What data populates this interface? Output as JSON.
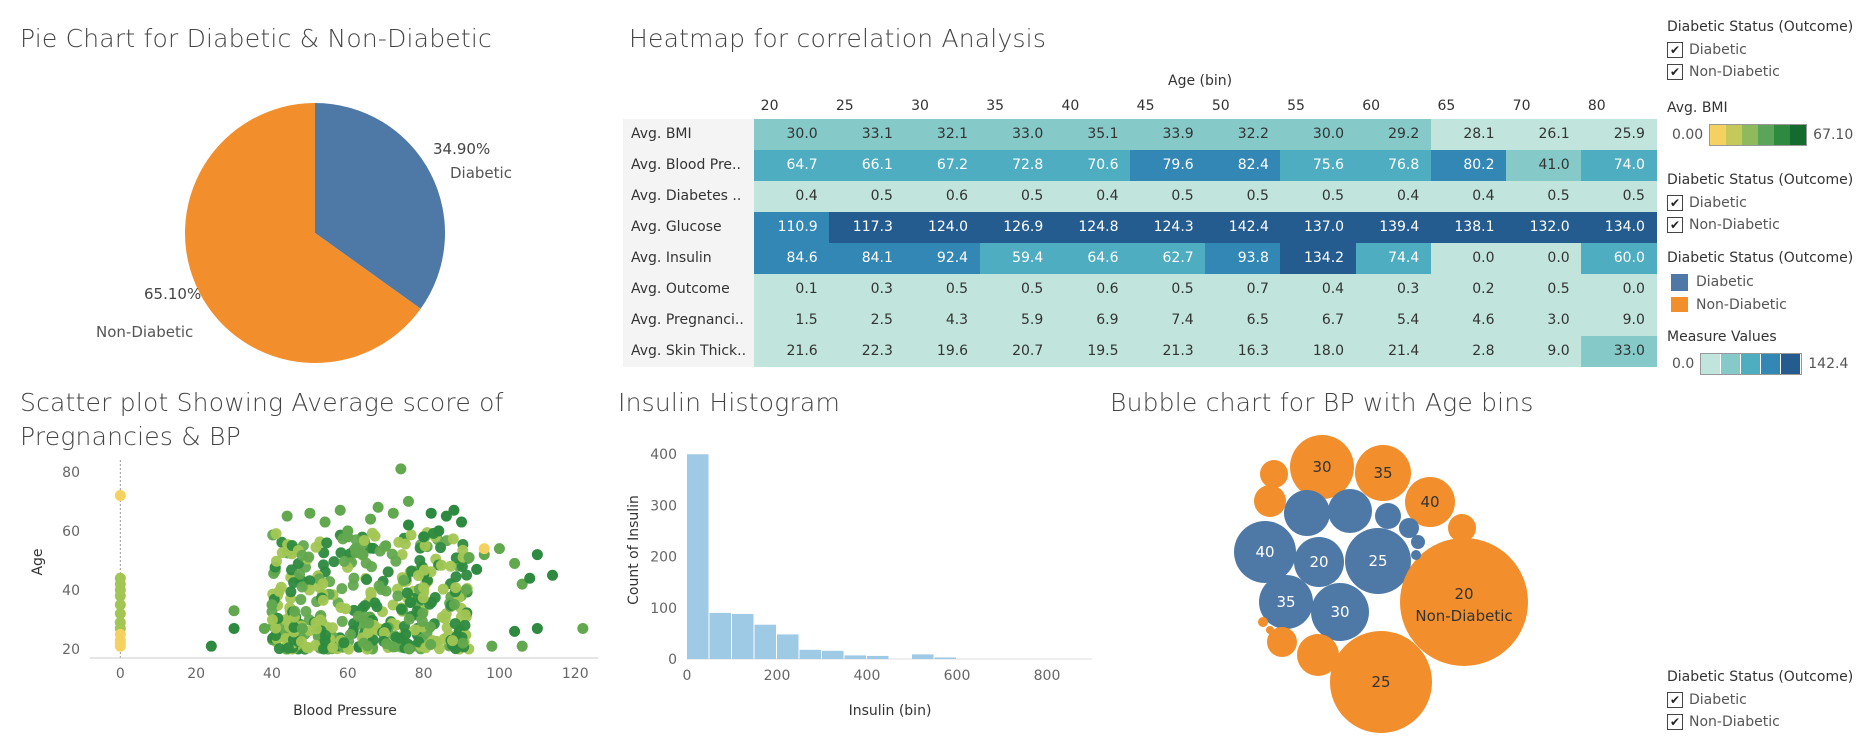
{
  "pie": {
    "title": "Pie Chart for Diabetic & Non-Diabetic",
    "slices": [
      {
        "name": "Diabetic",
        "pct_label": "34.90%",
        "value": 34.9,
        "color": "#4e79a7"
      },
      {
        "name": "Non-Diabetic",
        "pct_label": "65.10%",
        "value": 65.1,
        "color": "#f28e2b"
      }
    ]
  },
  "heatmap": {
    "title": "Heatmap for correlation Analysis",
    "column_header": "Age (bin)",
    "columns": [
      "20",
      "25",
      "30",
      "35",
      "40",
      "45",
      "50",
      "55",
      "60",
      "65",
      "70",
      "80"
    ],
    "rows": [
      "Avg. BMI",
      "Avg. Blood Pre..",
      "Avg. Diabetes ..",
      "Avg. Glucose",
      "Avg. Insulin",
      "Avg. Outcome",
      "Avg. Pregnanci..",
      "Avg. Skin Thick.."
    ],
    "values": [
      [
        "30.0",
        "33.1",
        "32.1",
        "33.0",
        "35.1",
        "33.9",
        "32.2",
        "30.0",
        "29.2",
        "28.1",
        "26.1",
        "25.9"
      ],
      [
        "64.7",
        "66.1",
        "67.2",
        "72.8",
        "70.6",
        "79.6",
        "82.4",
        "75.6",
        "76.8",
        "80.2",
        "41.0",
        "74.0"
      ],
      [
        "0.4",
        "0.5",
        "0.6",
        "0.5",
        "0.4",
        "0.5",
        "0.5",
        "0.5",
        "0.4",
        "0.4",
        "0.5",
        "0.5"
      ],
      [
        "110.9",
        "117.3",
        "124.0",
        "126.9",
        "124.8",
        "124.3",
        "142.4",
        "137.0",
        "139.4",
        "138.1",
        "132.0",
        "134.0"
      ],
      [
        "84.6",
        "84.1",
        "92.4",
        "59.4",
        "64.6",
        "62.7",
        "93.8",
        "134.2",
        "74.4",
        "0.0",
        "0.0",
        "60.0"
      ],
      [
        "0.1",
        "0.3",
        "0.5",
        "0.5",
        "0.6",
        "0.5",
        "0.7",
        "0.4",
        "0.3",
        "0.2",
        "0.5",
        "0.0"
      ],
      [
        "1.5",
        "2.5",
        "4.3",
        "5.9",
        "6.9",
        "7.4",
        "6.5",
        "6.7",
        "5.4",
        "4.6",
        "3.0",
        "9.0"
      ],
      [
        "21.6",
        "22.3",
        "19.6",
        "20.7",
        "19.5",
        "21.3",
        "16.3",
        "18.0",
        "21.4",
        "2.8",
        "9.0",
        "33.0"
      ]
    ],
    "colors": [
      "#c1e5dc",
      "#85cac9",
      "#4eadc1",
      "#3287b5",
      "#255c8f"
    ]
  },
  "scatter": {
    "title": "Scatter plot Showing Average score of Pregnancies & BP",
    "xlabel": "Blood Pressure",
    "ylabel": "Age",
    "xticks": [
      "0",
      "20",
      "40",
      "60",
      "80",
      "100",
      "120"
    ],
    "yticks": [
      "20",
      "40",
      "60",
      "80"
    ]
  },
  "histogram": {
    "title": "Insulin Histogram",
    "xlabel": "Insulin (bin)",
    "ylabel": "Count of Insulin",
    "xticks": [
      "0",
      "200",
      "400",
      "600",
      "800"
    ],
    "yticks": [
      "0",
      "100",
      "200",
      "300",
      "400"
    ],
    "color": "#9fcae6"
  },
  "bubble": {
    "title": "Bubble chart for BP with Age bins",
    "labels": {
      "b30o": "30",
      "b35o": "35",
      "b40o": "40",
      "b40b": "40",
      "b20b": "20",
      "b25b": "25",
      "b35b": "35",
      "b30b": "30",
      "b20o": "20",
      "b20o_sub": "Non-Diabetic",
      "b25o": "25"
    }
  },
  "legends": {
    "status_title": "Diabetic Status (Outcome)",
    "diabetic": "Diabetic",
    "non_diabetic": "Non-Diabetic",
    "bmi_title": "Avg. BMI",
    "bmi_min": "0.00",
    "bmi_max": "67.10",
    "measure_title": "Measure Values",
    "measure_min": "0.0",
    "measure_max": "142.4",
    "check": "✔"
  },
  "chart_data": [
    {
      "type": "pie",
      "title": "Pie Chart for Diabetic & Non-Diabetic",
      "categories": [
        "Diabetic",
        "Non-Diabetic"
      ],
      "values": [
        34.9,
        65.1
      ]
    },
    {
      "type": "heatmap",
      "title": "Heatmap for correlation Analysis",
      "xlabel": "Age (bin)",
      "x": [
        "20",
        "25",
        "30",
        "35",
        "40",
        "45",
        "50",
        "55",
        "60",
        "65",
        "70",
        "80"
      ],
      "y": [
        "Avg. BMI",
        "Avg. Blood Pre..",
        "Avg. Diabetes ..",
        "Avg. Glucose",
        "Avg. Insulin",
        "Avg. Outcome",
        "Avg. Pregnanci..",
        "Avg. Skin Thick.."
      ],
      "values": [
        [
          30.0,
          33.1,
          32.1,
          33.0,
          35.1,
          33.9,
          32.2,
          30.0,
          29.2,
          28.1,
          26.1,
          25.9
        ],
        [
          64.7,
          66.1,
          67.2,
          72.8,
          70.6,
          79.6,
          82.4,
          75.6,
          76.8,
          80.2,
          41.0,
          74.0
        ],
        [
          0.4,
          0.5,
          0.6,
          0.5,
          0.4,
          0.5,
          0.5,
          0.5,
          0.4,
          0.4,
          0.5,
          0.5
        ],
        [
          110.9,
          117.3,
          124.0,
          126.9,
          124.8,
          124.3,
          142.4,
          137.0,
          139.4,
          138.1,
          132.0,
          134.0
        ],
        [
          84.6,
          84.1,
          92.4,
          59.4,
          64.6,
          62.7,
          93.8,
          134.2,
          74.4,
          0.0,
          0.0,
          60.0
        ],
        [
          0.1,
          0.3,
          0.5,
          0.5,
          0.6,
          0.5,
          0.7,
          0.4,
          0.3,
          0.2,
          0.5,
          0.0
        ],
        [
          1.5,
          2.5,
          4.3,
          5.9,
          6.9,
          7.4,
          6.5,
          6.7,
          5.4,
          4.6,
          3.0,
          9.0
        ],
        [
          21.6,
          22.3,
          19.6,
          20.7,
          19.5,
          21.3,
          16.3,
          18.0,
          21.4,
          2.8,
          9.0,
          33.0
        ]
      ],
      "vmin": 0.0,
      "vmax": 142.4
    },
    {
      "type": "scatter",
      "title": "Scatter plot Showing Average score of Pregnancies & BP",
      "xlabel": "Blood Pressure",
      "ylabel": "Age",
      "xlim": [
        -8,
        126
      ],
      "ylim": [
        17,
        84
      ],
      "points": [
        [
          0,
          72
        ],
        [
          0,
          44
        ],
        [
          0,
          42
        ],
        [
          0,
          40
        ],
        [
          0,
          38
        ],
        [
          0,
          35
        ],
        [
          0,
          32
        ],
        [
          0,
          29
        ],
        [
          0,
          27
        ],
        [
          0,
          25
        ],
        [
          0,
          23
        ],
        [
          0,
          22
        ],
        [
          0,
          21
        ],
        [
          24,
          21
        ],
        [
          30,
          27
        ],
        [
          30,
          33
        ],
        [
          38,
          27
        ],
        [
          40,
          35
        ],
        [
          44,
          65
        ],
        [
          48,
          27
        ],
        [
          50,
          66
        ],
        [
          54,
          63
        ],
        [
          58,
          67
        ],
        [
          60,
          58
        ],
        [
          60,
          60
        ],
        [
          62,
          54
        ],
        [
          64,
          52
        ],
        [
          66,
          64
        ],
        [
          68,
          68
        ],
        [
          70,
          55
        ],
        [
          72,
          66
        ],
        [
          74,
          81
        ],
        [
          76,
          70
        ],
        [
          76,
          62
        ],
        [
          80,
          58
        ],
        [
          82,
          66
        ],
        [
          84,
          60
        ],
        [
          86,
          65
        ],
        [
          88,
          67
        ],
        [
          90,
          63
        ],
        [
          92,
          51
        ],
        [
          94,
          47
        ],
        [
          96,
          52
        ],
        [
          100,
          54
        ],
        [
          104,
          49
        ],
        [
          106,
          42
        ],
        [
          108,
          44
        ],
        [
          110,
          52
        ],
        [
          110,
          27
        ],
        [
          114,
          45
        ],
        [
          122,
          27
        ],
        [
          96,
          54
        ],
        [
          98,
          21
        ],
        [
          104,
          26
        ],
        [
          106,
          21
        ]
      ],
      "point_shades": [
        0,
        1,
        1,
        1,
        1,
        1,
        1,
        1,
        1,
        0,
        0,
        0,
        0,
        3,
        3,
        2,
        2,
        2,
        2,
        2,
        2,
        2,
        2,
        2,
        2,
        2,
        2,
        2,
        2,
        2,
        2,
        2,
        2,
        3,
        3,
        3,
        3,
        3,
        3,
        3,
        2,
        3,
        2,
        2,
        2,
        2,
        3,
        3,
        3,
        3,
        2,
        0,
        2,
        3,
        2
      ],
      "band": {
        "x": [
          40,
          92
        ],
        "y": [
          20,
          60
        ]
      }
    },
    {
      "type": "bar",
      "title": "Insulin Histogram",
      "xlabel": "Insulin (bin)",
      "ylabel": "Count of Insulin",
      "bin_width": 50,
      "bins": [
        0,
        50,
        100,
        150,
        200,
        250,
        300,
        350,
        400,
        450,
        500,
        550
      ],
      "values": [
        400,
        90,
        88,
        67,
        48,
        18,
        16,
        7,
        6,
        0,
        9,
        3
      ],
      "xlim": [
        0,
        900
      ],
      "ylim": [
        0,
        420
      ]
    },
    {
      "type": "bubble",
      "title": "Bubble chart for BP with Age bins",
      "series": [
        {
          "name": "Diabetic",
          "bins": [
            "40",
            "20",
            "25",
            "35",
            "30"
          ]
        },
        {
          "name": "Non-Diabetic",
          "bins": [
            "30",
            "35",
            "40",
            "20",
            "25"
          ]
        }
      ]
    }
  ]
}
